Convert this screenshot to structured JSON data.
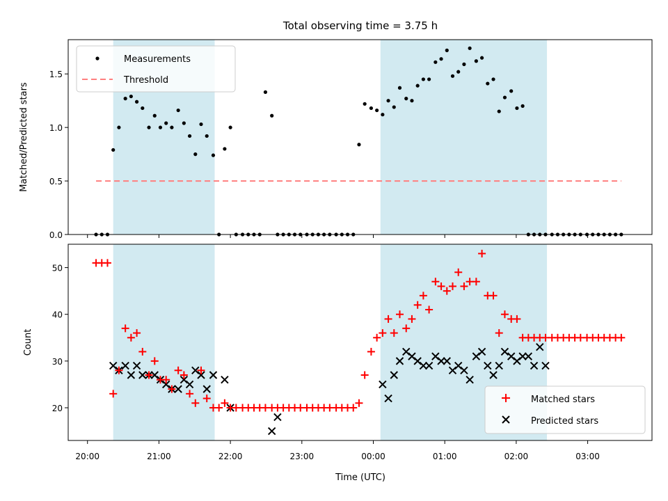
{
  "chart_data": [
    {
      "type": "scatter",
      "title": "Total observing time = 3.75 h",
      "ylabel": "Matched/Predicted stars",
      "xlabel": "",
      "ylim": [
        0,
        1.82
      ],
      "yticks": [
        0.0,
        0.5,
        1.0,
        1.5
      ],
      "ytick_labels": [
        "0.0",
        "0.5",
        "1.0",
        "1.5"
      ],
      "x_unit": "hours after 20:00 UTC",
      "xlim": [
        -0.27,
        7.9
      ],
      "shaded_bands": [
        [
          0.36,
          1.78
        ],
        [
          4.1,
          6.43
        ]
      ],
      "band_color": "#add8e6",
      "legend_position": "upper-left",
      "series": [
        {
          "name": "Measurements",
          "marker": "dot",
          "color": "#000000",
          "x": [
            0.12,
            0.2,
            0.28,
            0.36,
            0.44,
            0.53,
            0.61,
            0.69,
            0.77,
            0.86,
            0.94,
            1.02,
            1.1,
            1.18,
            1.27,
            1.35,
            1.43,
            1.51,
            1.59,
            1.67,
            1.76,
            1.84,
            1.92,
            2.0,
            2.08,
            2.17,
            2.25,
            2.33,
            2.41,
            2.49,
            2.58,
            2.66,
            2.74,
            2.82,
            2.9,
            2.98,
            3.07,
            3.15,
            3.23,
            3.31,
            3.39,
            3.48,
            3.56,
            3.64,
            3.72,
            3.8,
            3.88,
            3.97,
            4.05,
            4.13,
            4.21,
            4.29,
            4.37,
            4.46,
            4.54,
            4.62,
            4.7,
            4.78,
            4.87,
            4.95,
            5.03,
            5.11,
            5.19,
            5.27,
            5.35,
            5.44,
            5.52,
            5.6,
            5.68,
            5.76,
            5.84,
            5.93,
            6.01,
            6.09,
            6.17,
            6.25,
            6.33,
            6.41,
            6.5,
            6.58,
            6.66,
            6.74,
            6.82,
            6.9,
            6.99,
            7.07,
            7.15,
            7.23,
            7.31,
            7.39,
            7.47
          ],
          "y": [
            0,
            0,
            0,
            0.79,
            1.0,
            1.27,
            1.29,
            1.24,
            1.18,
            1.0,
            1.11,
            1.0,
            1.04,
            1.0,
            1.16,
            1.04,
            0.92,
            0.75,
            1.03,
            0.92,
            0.74,
            0,
            0.8,
            1.0,
            0,
            0,
            0,
            0,
            0,
            1.33,
            1.11,
            0,
            0,
            0,
            0,
            0,
            0,
            0,
            0,
            0,
            0,
            0,
            0,
            0,
            0,
            0.84,
            1.22,
            1.18,
            1.16,
            1.12,
            1.25,
            1.19,
            1.37,
            1.27,
            1.25,
            1.39,
            1.45,
            1.45,
            1.61,
            1.64,
            1.72,
            1.48,
            1.52,
            1.59,
            1.74,
            1.62,
            1.65,
            1.41,
            1.45,
            1.15,
            1.28,
            1.34,
            1.18,
            1.2,
            0,
            0,
            0,
            0,
            0,
            0,
            0,
            0,
            0,
            0,
            0,
            0,
            0,
            0,
            0,
            0,
            0
          ]
        },
        {
          "name": "Threshold",
          "marker": "dashed-line",
          "color": "#ff7f7f",
          "x": [
            0.12,
            7.47
          ],
          "y": [
            0.5,
            0.5
          ]
        }
      ]
    },
    {
      "type": "scatter",
      "title": "",
      "xlabel": "Time (UTC)",
      "ylabel": "Count",
      "ylim": [
        13,
        55
      ],
      "yticks": [
        20,
        30,
        40,
        50
      ],
      "ytick_labels": [
        "20",
        "30",
        "40",
        "50"
      ],
      "x_unit": "hours after 20:00 UTC",
      "xlim": [
        -0.27,
        7.9
      ],
      "xticks": [
        0,
        1,
        2,
        3,
        4,
        5,
        6,
        7
      ],
      "xtick_labels": [
        "20:00",
        "21:00",
        "22:00",
        "23:00",
        "00:00",
        "01:00",
        "02:00",
        "03:00"
      ],
      "shaded_bands": [
        [
          0.36,
          1.78
        ],
        [
          4.1,
          6.43
        ]
      ],
      "band_color": "#add8e6",
      "legend_position": "lower-right",
      "series": [
        {
          "name": "Matched stars",
          "marker": "plus",
          "color": "#ff0000",
          "x": [
            0.12,
            0.2,
            0.28,
            0.36,
            0.44,
            0.53,
            0.61,
            0.69,
            0.77,
            0.86,
            0.94,
            1.02,
            1.1,
            1.18,
            1.27,
            1.35,
            1.43,
            1.51,
            1.59,
            1.67,
            1.76,
            1.84,
            1.92,
            2.0,
            2.08,
            2.17,
            2.25,
            2.33,
            2.41,
            2.49,
            2.58,
            2.66,
            2.74,
            2.82,
            2.9,
            2.98,
            3.07,
            3.15,
            3.23,
            3.31,
            3.39,
            3.48,
            3.56,
            3.64,
            3.72,
            3.8,
            3.88,
            3.97,
            4.05,
            4.13,
            4.21,
            4.29,
            4.37,
            4.46,
            4.54,
            4.62,
            4.7,
            4.78,
            4.87,
            4.95,
            5.03,
            5.11,
            5.19,
            5.27,
            5.35,
            5.44,
            5.52,
            5.6,
            5.68,
            5.76,
            5.84,
            5.93,
            6.01,
            6.09,
            6.17,
            6.25,
            6.33,
            6.41,
            6.5,
            6.58,
            6.66,
            6.74,
            6.82,
            6.9,
            6.99,
            7.07,
            7.15,
            7.23,
            7.31,
            7.39,
            7.47
          ],
          "y": [
            51,
            51,
            51,
            23,
            28,
            37,
            35,
            36,
            32,
            27,
            30,
            26,
            26,
            24,
            28,
            27,
            23,
            21,
            28,
            22,
            20,
            20,
            21,
            20,
            20,
            20,
            20,
            20,
            20,
            20,
            20,
            20,
            20,
            20,
            20,
            20,
            20,
            20,
            20,
            20,
            20,
            20,
            20,
            20,
            20,
            21,
            27,
            32,
            35,
            36,
            39,
            36,
            40,
            37,
            39,
            42,
            44,
            41,
            47,
            46,
            45,
            46,
            49,
            46,
            47,
            47,
            53,
            44,
            44,
            36,
            40,
            39,
            39,
            35,
            35,
            35,
            35,
            35,
            35,
            35,
            35,
            35,
            35,
            35,
            35,
            35,
            35,
            35,
            35,
            35,
            35
          ]
        },
        {
          "name": "Predicted stars",
          "marker": "x",
          "color": "#000000",
          "x": [
            0.36,
            0.44,
            0.53,
            0.61,
            0.69,
            0.77,
            0.86,
            0.94,
            1.02,
            1.1,
            1.18,
            1.27,
            1.35,
            1.43,
            1.51,
            1.59,
            1.67,
            1.76,
            1.92,
            2.0,
            2.58,
            2.66,
            4.13,
            4.21,
            4.29,
            4.37,
            4.46,
            4.54,
            4.62,
            4.7,
            4.78,
            4.87,
            4.95,
            5.03,
            5.11,
            5.19,
            5.27,
            5.35,
            5.44,
            5.52,
            5.6,
            5.68,
            5.76,
            5.84,
            5.93,
            6.01,
            6.09,
            6.17,
            6.25,
            6.33,
            6.41
          ],
          "y": [
            29,
            28,
            29,
            27,
            29,
            27,
            27,
            27,
            26,
            25,
            24,
            24,
            26,
            25,
            28,
            27,
            24,
            27,
            26,
            20,
            15,
            18,
            25,
            22,
            27,
            30,
            32,
            31,
            30,
            29,
            29,
            31,
            30,
            30,
            28,
            29,
            28,
            26,
            31,
            32,
            29,
            27,
            29,
            32,
            31,
            30,
            31,
            31,
            29,
            33,
            29
          ]
        }
      ]
    }
  ]
}
